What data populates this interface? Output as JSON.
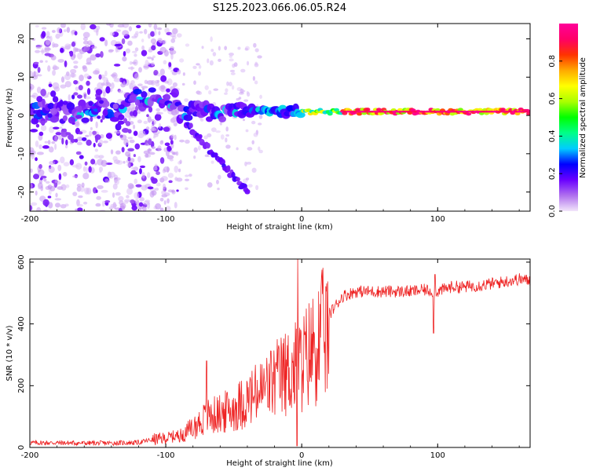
{
  "figure_title": "S125.2023.066.06.05.R24",
  "chart_data": [
    {
      "type": "heatmap",
      "title": "",
      "xlabel": "Height of straight line (km)",
      "ylabel": "Frequency (Hz)",
      "xlim": [
        -200,
        168
      ],
      "ylim": [
        -25,
        24
      ],
      "x_ticks": [
        -200,
        -100,
        0,
        100
      ],
      "y_ticks": [
        -20,
        -10,
        0,
        10,
        20
      ],
      "colorbar": {
        "label": "Normalized spectral amplitude",
        "range": [
          0.0,
          1.0
        ],
        "ticks": [
          "0.0",
          "0.2",
          "0.4",
          "0.6",
          "0.8"
        ],
        "tick_values": [
          0.0,
          0.2,
          0.4,
          0.6,
          0.8
        ],
        "colormap": [
          "#f2e6fa",
          "#b070ee",
          "#6a00ff",
          "#0000ff",
          "#00ccff",
          "#00ff88",
          "#00ff00",
          "#aaff00",
          "#ffff00",
          "#ffaa00",
          "#ff3300",
          "#ff0066",
          "#ff0099"
        ]
      },
      "features": {
        "scatter_region_x": [
          -200,
          -110
        ],
        "scatter_region_y": [
          -25,
          24
        ],
        "main_band_x": [
          -200,
          168
        ],
        "main_band_freq_hz": 1,
        "descending_branch": {
          "x": [
            -85,
            -40
          ],
          "freq_hz": [
            -2,
            -20
          ]
        },
        "strong_signal_from_x": 0
      }
    },
    {
      "type": "line",
      "title": "",
      "xlabel": "Height of straight line (km)",
      "ylabel": "SNR (10 * v/v)",
      "xlim": [
        -200,
        168
      ],
      "ylim": [
        0,
        610
      ],
      "x_ticks": [
        -200,
        -100,
        0,
        100
      ],
      "y_ticks": [
        0,
        200,
        400,
        600
      ],
      "series": [
        {
          "color": "#ee2222",
          "x": [
            -200,
            -180,
            -160,
            -140,
            -120,
            -110,
            -100,
            -90,
            -80,
            -70,
            -60,
            -50,
            -40,
            -30,
            -20,
            -10,
            0,
            10,
            20,
            30,
            40,
            60,
            80,
            90,
            100,
            110,
            120,
            140,
            160,
            168
          ],
          "y": [
            15,
            15,
            14,
            14,
            16,
            25,
            30,
            40,
            70,
            110,
            120,
            140,
            170,
            200,
            240,
            270,
            300,
            370,
            430,
            490,
            505,
            505,
            505,
            510,
            505,
            520,
            520,
            530,
            545,
            540
          ],
          "spikes": [
            {
              "x": -3,
              "y": 610
            },
            {
              "x": -3.5,
              "y": 5
            },
            {
              "x": 98,
              "y": 560
            },
            {
              "x": 97,
              "y": 370
            },
            {
              "x": -70,
              "y": 280
            }
          ]
        }
      ]
    }
  ]
}
